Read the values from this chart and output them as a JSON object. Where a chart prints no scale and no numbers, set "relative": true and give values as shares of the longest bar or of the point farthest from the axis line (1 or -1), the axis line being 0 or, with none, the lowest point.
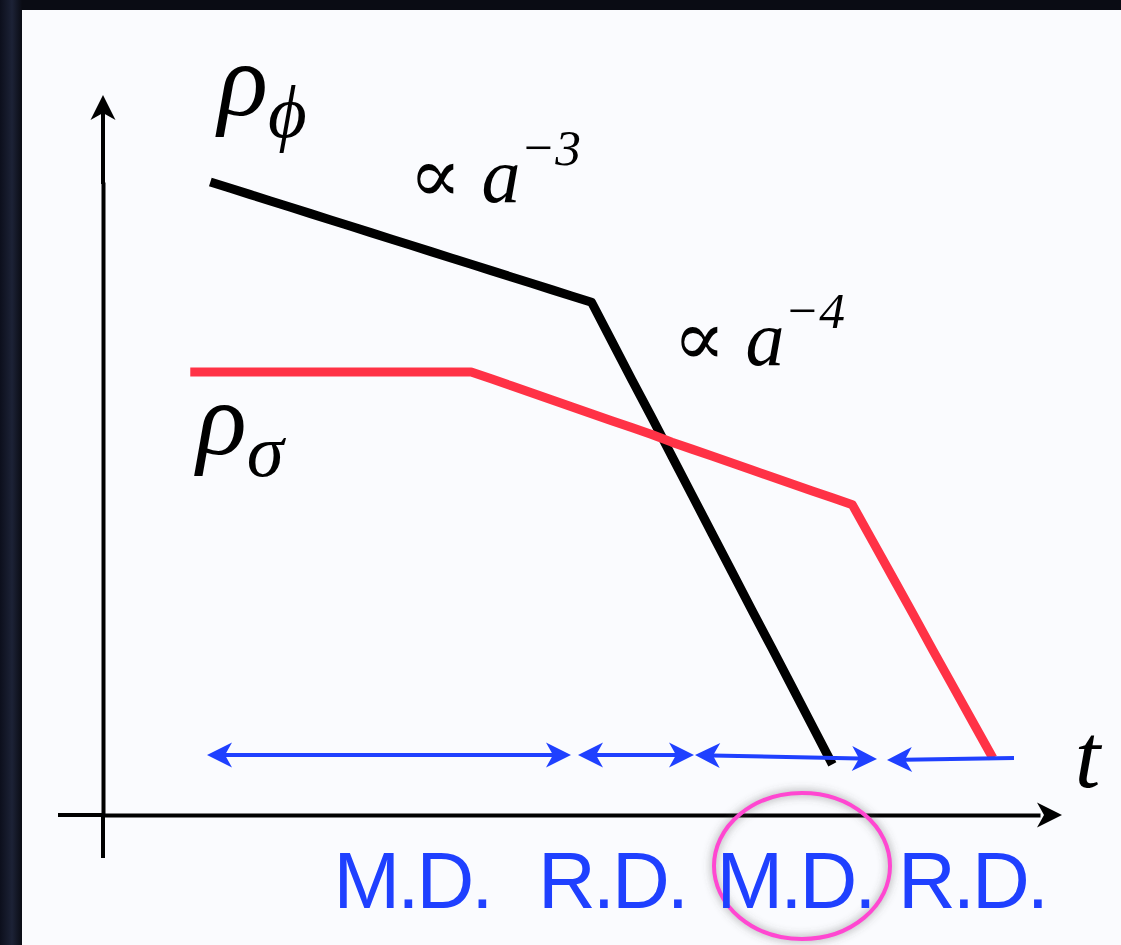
{
  "chart_data": {
    "type": "line",
    "xlabel": "t",
    "relative": true,
    "categories": [
      null,
      null,
      null,
      null,
      null,
      null,
      null,
      null,
      null,
      null,
      null,
      null,
      null,
      null,
      null,
      null,
      null,
      null,
      null,
      null,
      null,
      null,
      null,
      null,
      null,
      null,
      null,
      null,
      null,
      null,
      null,
      null,
      null,
      null,
      null,
      null,
      null,
      null,
      null,
      null,
      null,
      null,
      null,
      null,
      null,
      null,
      null
    ],
    "series": [
      {
        "name": "ρ$_{ϕ}$",
        "color": "#000000",
        "values": [
          null,
          null,
          null,
          null,
          null,
          1.0,
          0.99,
          0.98,
          0.97,
          0.96,
          0.95,
          0.94,
          0.93,
          0.92,
          0.91,
          0.9,
          0.89,
          0.88,
          0.87,
          0.86,
          0.85,
          0.84,
          0.83,
          0.82,
          0.81,
          0.749,
          0.688,
          0.628,
          0.567,
          0.506,
          0.445,
          0.384,
          0.323,
          0.263,
          0.202,
          0.141,
          0.08,
          null,
          null,
          null,
          null,
          null,
          null,
          null,
          null,
          null,
          null
        ]
      },
      {
        "name": "ρ$_{σ}$",
        "color": "#ff3246",
        "values": [
          null,
          null,
          null,
          null,
          0.7,
          0.7,
          0.7,
          0.7,
          0.7,
          0.7,
          0.7,
          0.7,
          0.7,
          0.7,
          0.7,
          0.7,
          0.7,
          0.7,
          0.7,
          0.689,
          0.678,
          0.667,
          0.656,
          0.645,
          0.634,
          0.623,
          0.612,
          0.601,
          0.589,
          0.578,
          0.567,
          0.556,
          0.545,
          0.534,
          0.523,
          0.512,
          0.501,
          0.49,
          0.433,
          0.376,
          0.319,
          0.261,
          0.204,
          0.147,
          0.09,
          null,
          null
        ]
      }
    ],
    "annotations": [
      "∝ a$^{−3}$",
      "∝ a$^{−4}$",
      "M.D.",
      "R.D.",
      "M.D.",
      "R.D."
    ]
  }
}
